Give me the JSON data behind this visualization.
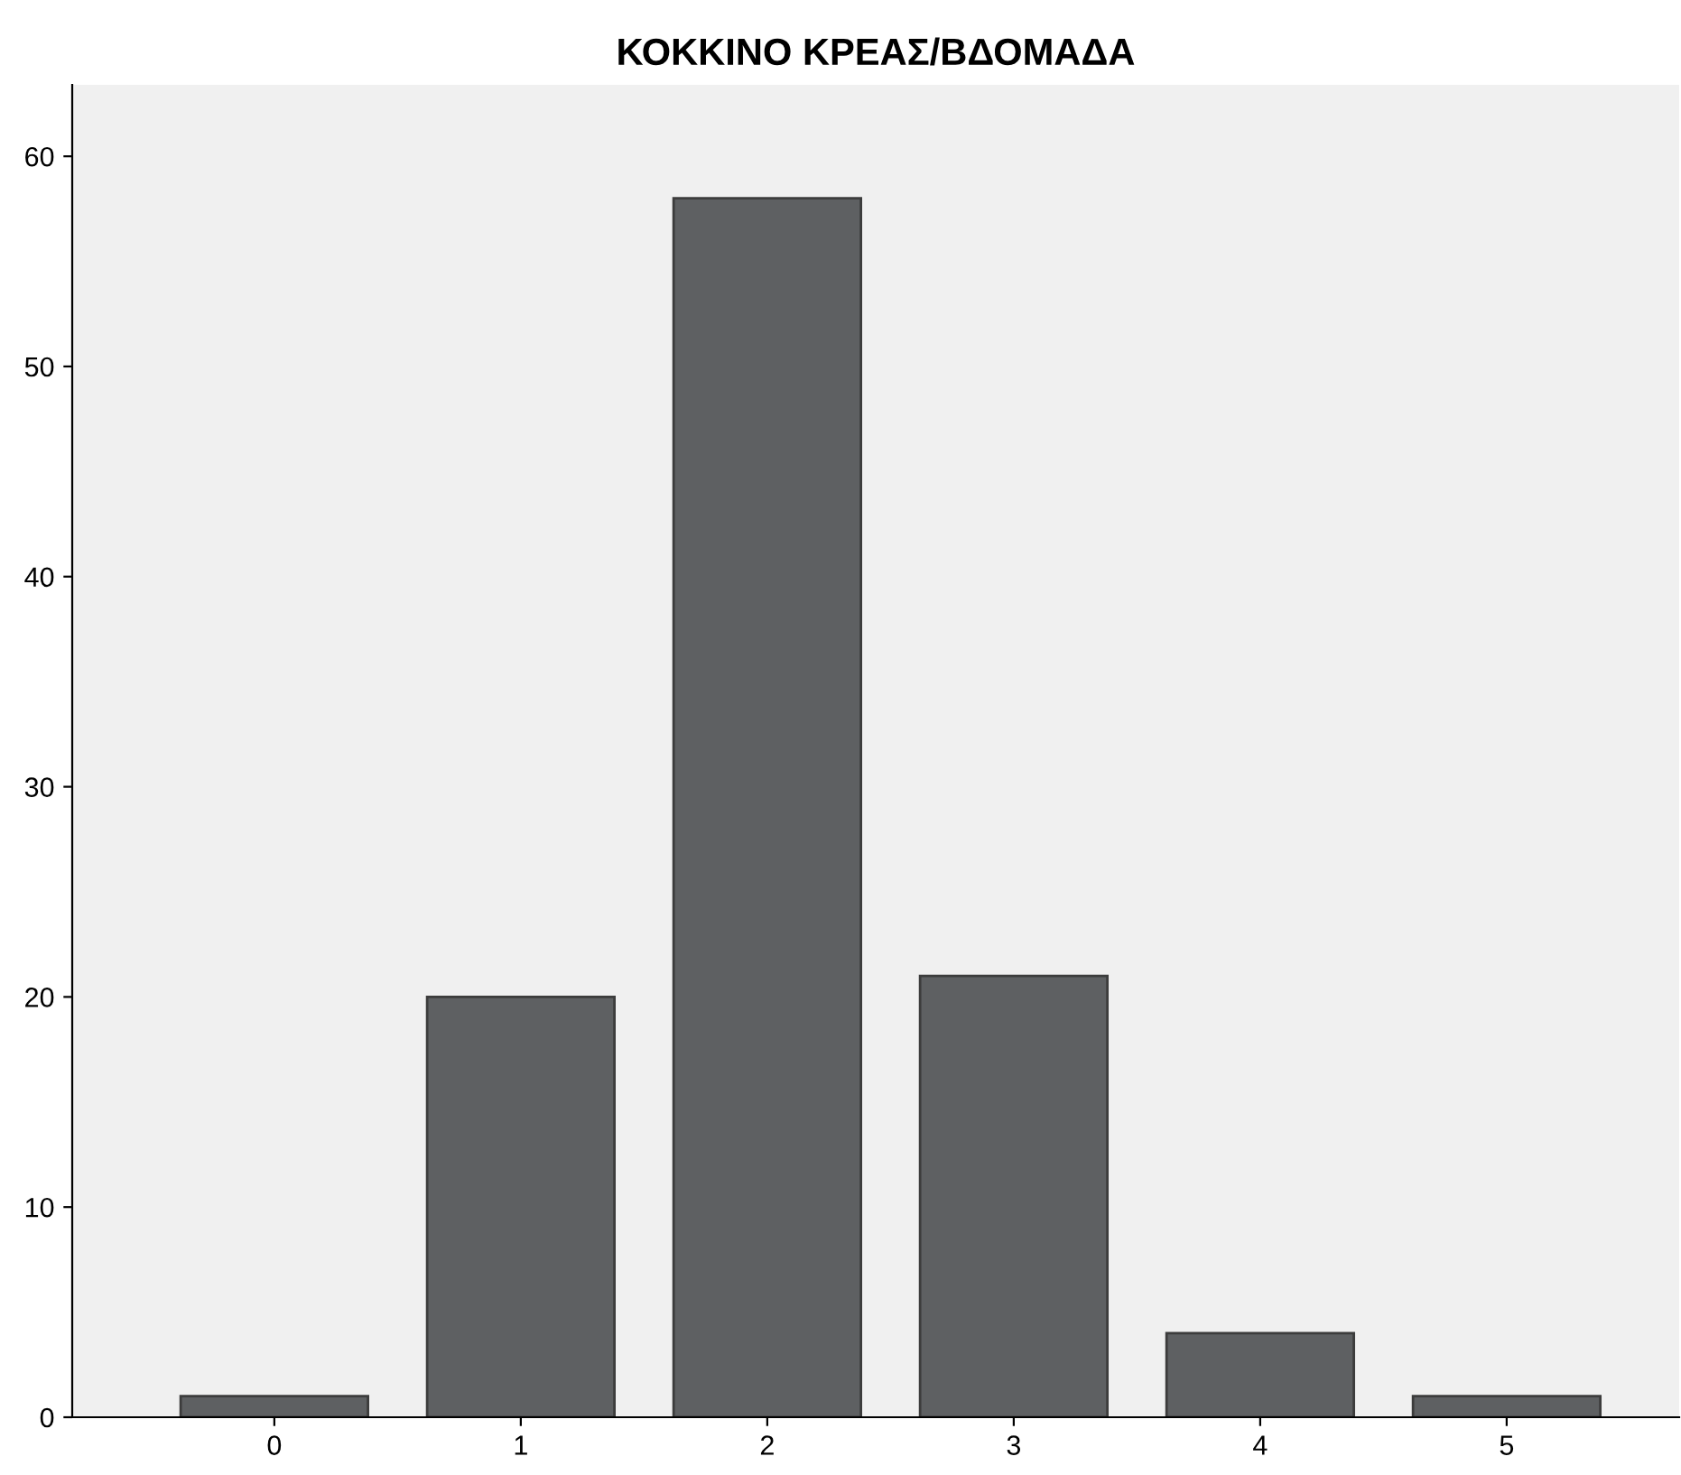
{
  "chart_data": {
    "type": "bar",
    "title": "ΚΟΚΚΙΝΟ ΚΡΕΑΣ/ΒΔΟΜΑΔΑ",
    "categories": [
      "0",
      "1",
      "2",
      "3",
      "4",
      "5"
    ],
    "values": [
      1,
      20,
      58,
      21,
      4,
      1
    ],
    "color": "#5e6062",
    "ylim": [
      0,
      63.4
    ],
    "yticks": [
      0,
      10,
      20,
      30,
      40,
      50,
      60
    ],
    "grid": false
  }
}
